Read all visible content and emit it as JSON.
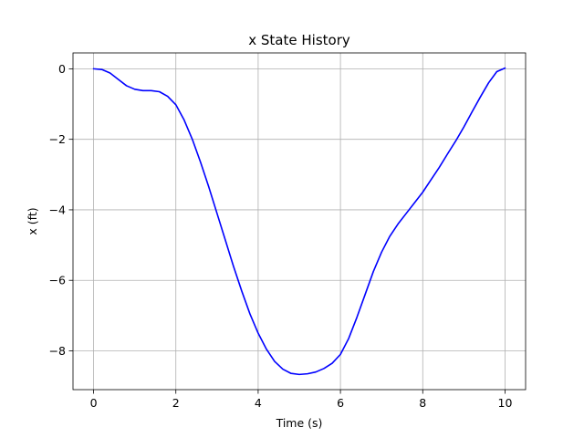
{
  "chart_data": {
    "type": "line",
    "title": "x State History",
    "xlabel": "Time (s)",
    "ylabel": "x (ft)",
    "xlim": [
      -0.5,
      10.5
    ],
    "ylim": [
      -9.1,
      0.45
    ],
    "xticks": [
      0,
      2,
      4,
      6,
      8,
      10
    ],
    "xtick_labels": [
      "0",
      "2",
      "4",
      "6",
      "8",
      "10"
    ],
    "yticks": [
      0,
      -2,
      -4,
      -6,
      -8
    ],
    "ytick_labels": [
      "0",
      "−2",
      "−4",
      "−6",
      "−8"
    ],
    "grid": true,
    "series": [
      {
        "color": "#0000ff",
        "x": [
          0,
          0.2,
          0.4,
          0.6,
          0.8,
          1.0,
          1.2,
          1.4,
          1.6,
          1.8,
          2.0,
          2.2,
          2.4,
          2.6,
          2.8,
          3.0,
          3.2,
          3.4,
          3.6,
          3.8,
          4.0,
          4.2,
          4.4,
          4.6,
          4.8,
          5.0,
          5.2,
          5.4,
          5.6,
          5.8,
          6.0,
          6.2,
          6.4,
          6.6,
          6.8,
          7.0,
          7.2,
          7.4,
          7.6,
          7.8,
          8.0,
          8.2,
          8.4,
          8.6,
          8.8,
          9.0,
          9.2,
          9.4,
          9.6,
          9.8,
          10.0
        ],
        "values": [
          0.0,
          -0.02,
          -0.12,
          -0.3,
          -0.48,
          -0.58,
          -0.62,
          -0.62,
          -0.65,
          -0.78,
          -1.02,
          -1.45,
          -2.0,
          -2.65,
          -3.35,
          -4.1,
          -4.85,
          -5.6,
          -6.3,
          -6.95,
          -7.5,
          -7.95,
          -8.3,
          -8.52,
          -8.64,
          -8.67,
          -8.65,
          -8.6,
          -8.5,
          -8.35,
          -8.1,
          -7.65,
          -7.05,
          -6.4,
          -5.75,
          -5.2,
          -4.75,
          -4.4,
          -4.1,
          -3.8,
          -3.5,
          -3.15,
          -2.8,
          -2.42,
          -2.05,
          -1.65,
          -1.22,
          -0.8,
          -0.4,
          -0.08,
          0.02
        ]
      }
    ]
  }
}
